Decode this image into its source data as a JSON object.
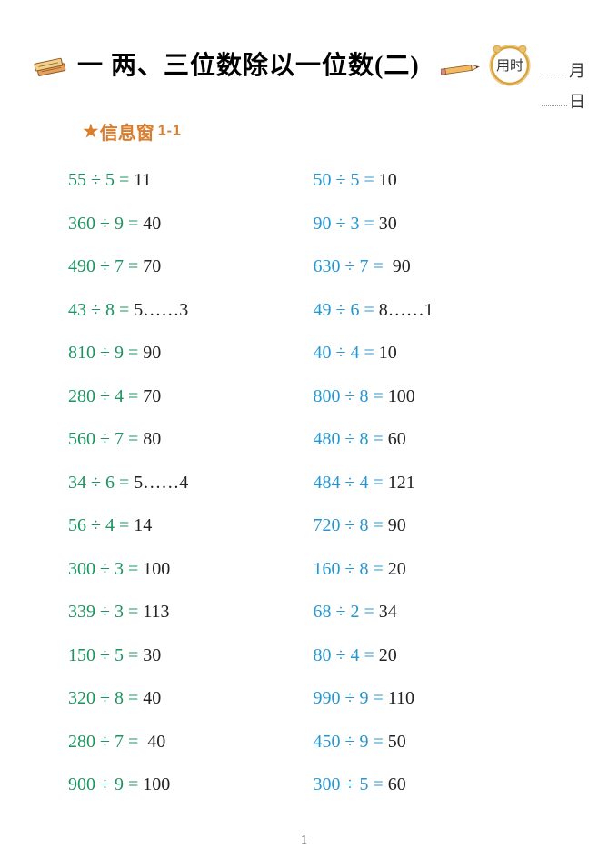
{
  "header": {
    "title": "一 两、三位数除以一位数(二)",
    "time_label": "用时",
    "month_label": "月",
    "day_label": "日"
  },
  "subheader": {
    "label": "信息窗",
    "number": "1-1"
  },
  "colors": {
    "green": "#1a9460",
    "blue": "#2596d1",
    "orange": "#d97d2e",
    "answer": "#222222",
    "background": "#ffffff"
  },
  "typography": {
    "title_fontsize": 28,
    "subheader_fontsize": 20,
    "problem_fontsize": 20,
    "row_gap": 24.5
  },
  "problems": {
    "left": [
      {
        "expr": "55 ÷ 5 = ",
        "ans": "11"
      },
      {
        "expr": "360 ÷ 9 = ",
        "ans": "40"
      },
      {
        "expr": "490 ÷ 7 = ",
        "ans": "70"
      },
      {
        "expr": "43 ÷ 8 = ",
        "ans": "5……3"
      },
      {
        "expr": "810 ÷ 9 = ",
        "ans": "90"
      },
      {
        "expr": "280 ÷ 4 = ",
        "ans": "70"
      },
      {
        "expr": "560 ÷ 7 = ",
        "ans": "80"
      },
      {
        "expr": "34 ÷ 6 = ",
        "ans": "5……4"
      },
      {
        "expr": "56 ÷ 4 = ",
        "ans": "14"
      },
      {
        "expr": "300 ÷ 3 = ",
        "ans": "100"
      },
      {
        "expr": "339 ÷ 3 = ",
        "ans": "113"
      },
      {
        "expr": "150 ÷ 5 = ",
        "ans": "30"
      },
      {
        "expr": "320 ÷ 8 = ",
        "ans": "40"
      },
      {
        "expr": "280 ÷ 7 =  ",
        "ans": "40"
      },
      {
        "expr": "900 ÷ 9 = ",
        "ans": "100"
      }
    ],
    "right": [
      {
        "expr": "50 ÷ 5 = ",
        "ans": "10"
      },
      {
        "expr": "90 ÷ 3 = ",
        "ans": "30"
      },
      {
        "expr": "630 ÷ 7 =  ",
        "ans": "90"
      },
      {
        "expr": "49 ÷ 6 = ",
        "ans": "8……1"
      },
      {
        "expr": "40 ÷ 4 = ",
        "ans": "10"
      },
      {
        "expr": "800 ÷ 8 = ",
        "ans": "100"
      },
      {
        "expr": "480 ÷ 8 = ",
        "ans": "60"
      },
      {
        "expr": "484 ÷ 4 = ",
        "ans": "121"
      },
      {
        "expr": "720 ÷ 8 = ",
        "ans": "90"
      },
      {
        "expr": "160 ÷ 8 = ",
        "ans": "20"
      },
      {
        "expr": "68 ÷ 2 = ",
        "ans": "34"
      },
      {
        "expr": "80 ÷ 4 = ",
        "ans": "20"
      },
      {
        "expr": "990 ÷ 9 = ",
        "ans": "110"
      },
      {
        "expr": "450 ÷ 9 = ",
        "ans": "50"
      },
      {
        "expr": "300 ÷ 5 = ",
        "ans": "60"
      }
    ]
  },
  "page_number": "1"
}
